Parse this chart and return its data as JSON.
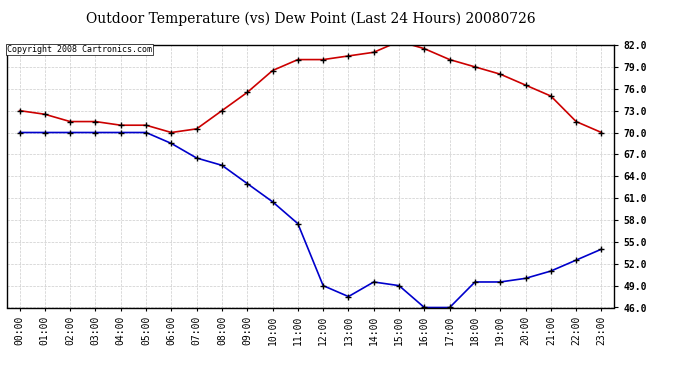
{
  "title": "Outdoor Temperature (vs) Dew Point (Last 24 Hours) 20080726",
  "copyright": "Copyright 2008 Cartronics.com",
  "x_labels": [
    "00:00",
    "01:00",
    "02:00",
    "03:00",
    "04:00",
    "05:00",
    "06:00",
    "07:00",
    "08:00",
    "09:00",
    "10:00",
    "11:00",
    "12:00",
    "13:00",
    "14:00",
    "15:00",
    "16:00",
    "17:00",
    "18:00",
    "19:00",
    "20:00",
    "21:00",
    "22:00",
    "23:00"
  ],
  "temp_data": [
    73.0,
    72.5,
    71.5,
    71.5,
    71.0,
    71.0,
    70.0,
    70.5,
    73.0,
    75.5,
    78.5,
    80.0,
    80.0,
    80.5,
    81.0,
    82.5,
    81.5,
    80.0,
    79.0,
    78.0,
    76.5,
    75.0,
    71.5,
    70.0
  ],
  "dew_data": [
    70.0,
    70.0,
    70.0,
    70.0,
    70.0,
    70.0,
    68.5,
    66.5,
    65.5,
    63.0,
    60.5,
    57.5,
    49.0,
    47.5,
    49.5,
    49.0,
    46.0,
    46.0,
    49.5,
    49.5,
    50.0,
    51.0,
    52.5,
    54.0
  ],
  "temp_color": "#cc0000",
  "dew_color": "#0000cc",
  "marker_color": "#000000",
  "bg_color": "#ffffff",
  "grid_color": "#cccccc",
  "ylim_min": 46.0,
  "ylim_max": 82.0,
  "yticks": [
    82.0,
    79.0,
    76.0,
    73.0,
    70.0,
    67.0,
    64.0,
    61.0,
    58.0,
    55.0,
    52.0,
    49.0,
    46.0
  ],
  "title_fontsize": 10,
  "tick_fontsize": 7,
  "copyright_fontsize": 6
}
